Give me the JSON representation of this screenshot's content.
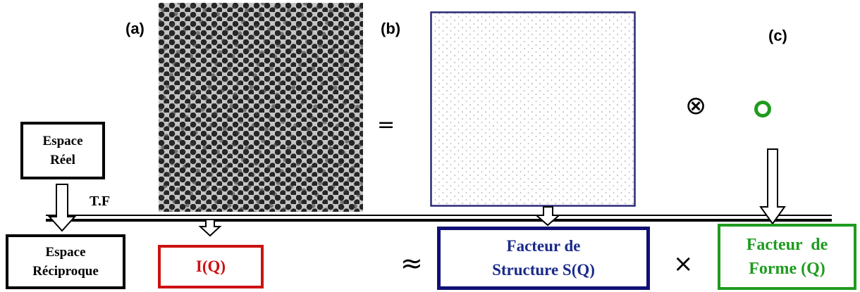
{
  "panels": {
    "a": "(a)",
    "b": "(b)",
    "c": "(c)"
  },
  "boxes": {
    "real_space": [
      "Espace",
      "Réel"
    ],
    "reciprocal_space": [
      "Espace",
      "Réciproque"
    ],
    "intensity": "I(Q)",
    "structure_factor": [
      "Facteur de",
      "Structure S(Q)"
    ],
    "form_factor": [
      "Facteur  de",
      "Forme (Q)"
    ]
  },
  "operators": {
    "equals": "=",
    "convolution": "⊗",
    "approx": "≈",
    "times": "×"
  },
  "transform_label": "T.F",
  "colors": {
    "intensity": "#cc1111",
    "structure": "#101075",
    "form": "#1f9b1f",
    "black": "#000000"
  },
  "icons": {
    "circle": "green-ring-icon"
  }
}
